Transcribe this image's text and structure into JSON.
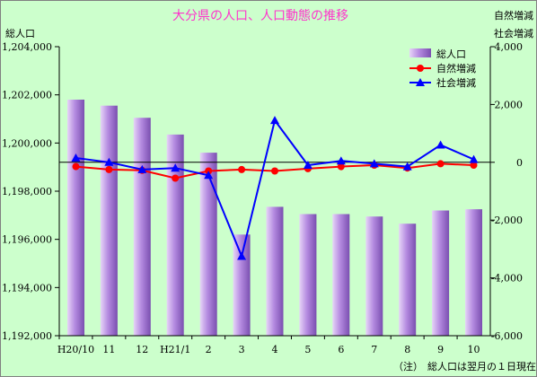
{
  "chart_data": {
    "type": "bar",
    "title": "大分県の人口、人口動態の推移",
    "categories": [
      "H20/10",
      "11",
      "12",
      "H21/1",
      "2",
      "3",
      "4",
      "5",
      "6",
      "7",
      "8",
      "9",
      "10"
    ],
    "left_axis": {
      "label": "総人口",
      "range": [
        1192000,
        1204000
      ],
      "ticks": [
        "1,192,000",
        "1,194,000",
        "1,196,000",
        "1,198,000",
        "1,200,000",
        "1,202,000",
        "1,204,000"
      ]
    },
    "right_axis": {
      "label_line1": "自然増減",
      "label_line2": "社会増減",
      "range": [
        -6000,
        4000
      ],
      "ticks": [
        "-6,000",
        "-4,000",
        "-2,000",
        "0",
        "2,000",
        "4,000"
      ]
    },
    "series": [
      {
        "name": "総人口",
        "kind": "bar",
        "axis": "left",
        "color": "#9966cc",
        "values": [
          1201800,
          1201550,
          1201050,
          1200350,
          1199600,
          1196200,
          1197350,
          1197050,
          1197050,
          1196950,
          1196650,
          1197200,
          1197250
        ]
      },
      {
        "name": "自然増減",
        "kind": "line",
        "axis": "right",
        "color": "#ff0000",
        "marker": "circle",
        "values": [
          -150,
          -250,
          -280,
          -550,
          -300,
          -250,
          -300,
          -220,
          -150,
          -100,
          -200,
          -50,
          -100
        ]
      },
      {
        "name": "社会増減",
        "kind": "line",
        "axis": "right",
        "color": "#0000ff",
        "marker": "triangle",
        "values": [
          150,
          0,
          -250,
          -200,
          -450,
          -3250,
          1450,
          -100,
          50,
          -50,
          -150,
          600,
          100
        ]
      }
    ],
    "legend_position": "top-right",
    "grid": false,
    "footnote_mark": "（注）",
    "footnote": "総人口は翌月の１日現在"
  }
}
